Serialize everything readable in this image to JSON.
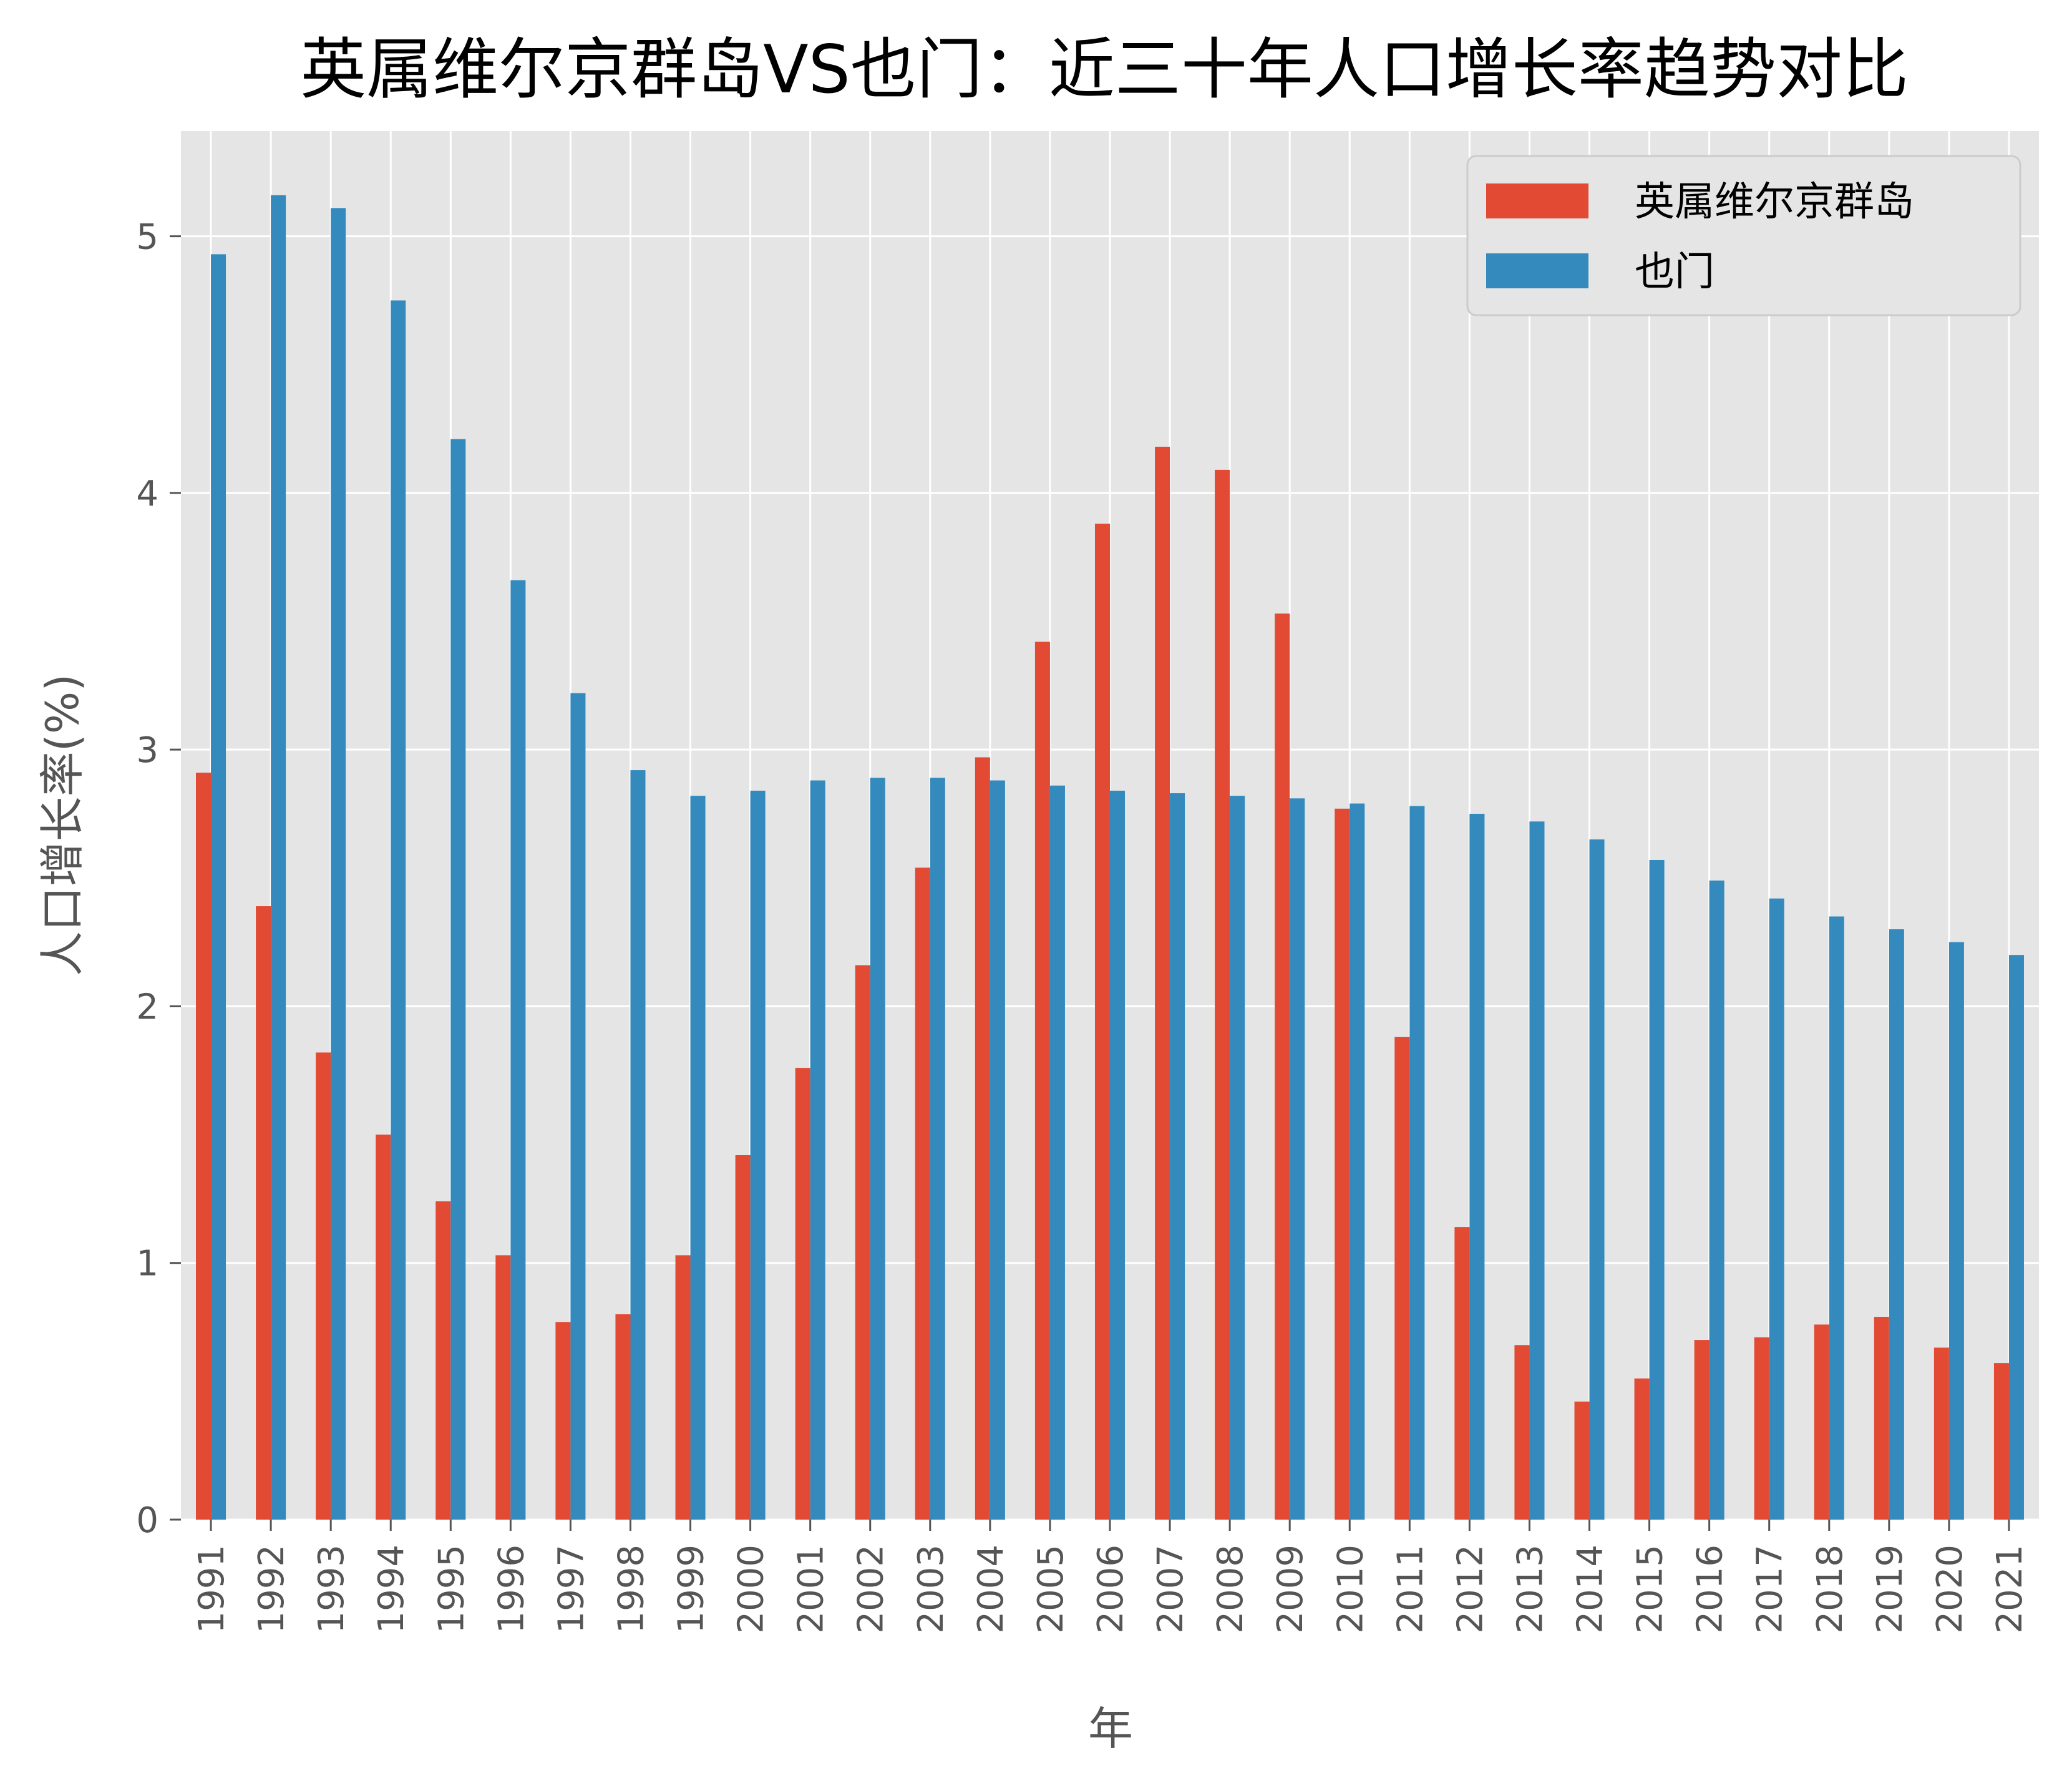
{
  "chart_data": {
    "type": "bar",
    "title": "英属维尔京群岛VS也门：近三十年人口增长率趋势对比",
    "xlabel": "年",
    "ylabel": "人口增长率(%)",
    "categories": [
      "1991",
      "1992",
      "1993",
      "1994",
      "1995",
      "1996",
      "1997",
      "1998",
      "1999",
      "2000",
      "2001",
      "2002",
      "2003",
      "2004",
      "2005",
      "2006",
      "2007",
      "2008",
      "2009",
      "2010",
      "2011",
      "2012",
      "2013",
      "2014",
      "2015",
      "2016",
      "2017",
      "2018",
      "2019",
      "2020",
      "2021"
    ],
    "series": [
      {
        "name": "英属维尔京群岛",
        "color": "#E24A33",
        "values": [
          2.91,
          2.39,
          1.82,
          1.5,
          1.24,
          1.03,
          0.77,
          0.8,
          1.03,
          1.42,
          1.76,
          2.16,
          2.54,
          2.97,
          3.42,
          3.88,
          4.18,
          4.09,
          3.53,
          2.77,
          1.88,
          1.14,
          0.68,
          0.46,
          0.55,
          0.7,
          0.71,
          0.76,
          0.79,
          0.67,
          0.61
        ]
      },
      {
        "name": "也门",
        "color": "#348ABD",
        "values": [
          4.93,
          5.16,
          5.11,
          4.75,
          4.21,
          3.66,
          3.22,
          2.92,
          2.82,
          2.84,
          2.88,
          2.89,
          2.89,
          2.88,
          2.86,
          2.84,
          2.83,
          2.82,
          2.81,
          2.79,
          2.78,
          2.75,
          2.72,
          2.65,
          2.57,
          2.49,
          2.42,
          2.35,
          2.3,
          2.25,
          2.2
        ]
      }
    ],
    "ylim": [
      0,
      5.41
    ],
    "yticks": [
      0,
      1,
      2,
      3,
      4,
      5
    ],
    "grid": true,
    "legend_position": "top-right",
    "plot_background": "#E5E5E5",
    "grid_color": "#FFFFFF"
  }
}
